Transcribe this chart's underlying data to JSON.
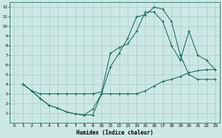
{
  "xlabel": "Humidex (Indice chaleur)",
  "bg_color": "#cce8e5",
  "grid_color": "#aad0cc",
  "line_color": "#1a6b5a",
  "xlim": [
    -0.5,
    23.5
  ],
  "ylim": [
    0,
    12.5
  ],
  "xticks": [
    0,
    1,
    2,
    3,
    4,
    5,
    6,
    7,
    8,
    9,
    10,
    11,
    12,
    13,
    14,
    15,
    16,
    17,
    18,
    19,
    20,
    21,
    22,
    23
  ],
  "yticks": [
    1,
    2,
    3,
    4,
    5,
    6,
    7,
    8,
    9,
    10,
    11,
    12
  ],
  "line1_x": [
    1,
    2,
    3,
    4,
    5,
    6,
    7,
    8,
    9,
    10,
    11,
    12,
    13,
    14,
    15,
    16,
    17,
    18,
    19,
    20,
    21,
    22,
    23
  ],
  "line1_y": [
    4.0,
    3.3,
    2.5,
    1.8,
    1.5,
    1.1,
    0.9,
    0.8,
    0.8,
    3.0,
    3.0,
    3.0,
    3.0,
    3.0,
    3.3,
    3.8,
    4.3,
    4.5,
    4.8,
    5.2,
    5.4,
    5.5,
    5.5
  ],
  "line2_x": [
    1,
    2,
    3,
    4,
    5,
    6,
    7,
    8,
    9,
    10,
    11,
    12,
    13,
    14,
    15,
    16,
    17,
    18,
    19,
    20,
    21,
    22,
    23
  ],
  "line2_y": [
    4.0,
    3.3,
    2.5,
    1.8,
    1.5,
    1.1,
    0.9,
    0.8,
    1.4,
    3.0,
    5.8,
    7.2,
    8.8,
    11.0,
    11.2,
    12.0,
    11.8,
    10.5,
    7.0,
    5.0,
    4.5,
    4.5,
    4.5
  ],
  "line3_x": [
    1,
    2,
    3,
    4,
    5,
    6,
    7,
    8,
    9,
    10,
    11,
    12,
    13,
    14,
    15,
    16,
    17,
    18,
    19,
    20,
    21,
    22,
    23
  ],
  "line3_y": [
    4.0,
    3.3,
    3.0,
    3.0,
    3.0,
    3.0,
    3.0,
    3.0,
    3.0,
    3.2,
    7.2,
    7.8,
    8.2,
    9.5,
    11.5,
    11.5,
    10.5,
    8.0,
    6.5,
    9.5,
    7.0,
    6.5,
    5.5
  ]
}
